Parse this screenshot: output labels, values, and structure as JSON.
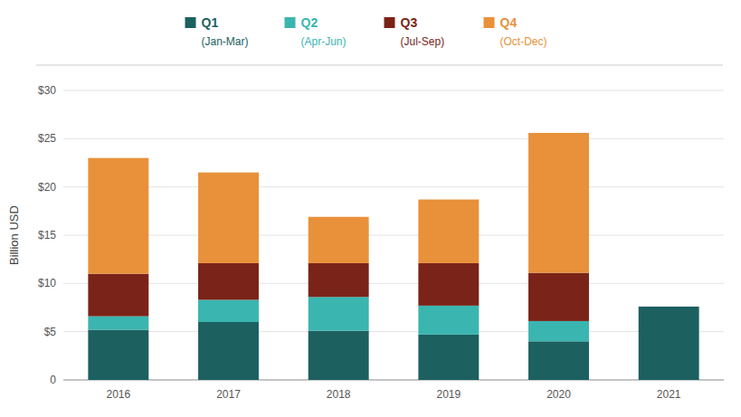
{
  "chart_data": {
    "type": "bar",
    "stacked": true,
    "grid": true,
    "legend": "top",
    "categories": [
      "2016",
      "2017",
      "2018",
      "2019",
      "2020",
      "2021"
    ],
    "series": [
      {
        "name": "Q1",
        "color": "#1c6060",
        "values": [
          5.2,
          6.0,
          5.1,
          4.7,
          4.0,
          7.6
        ]
      },
      {
        "name": "Q2",
        "color": "#3ab5b0",
        "values": [
          1.4,
          2.3,
          3.5,
          3.0,
          2.1,
          0.0
        ]
      },
      {
        "name": "Q3",
        "color": "#7a2318",
        "values": [
          4.4,
          3.8,
          3.5,
          4.4,
          5.0,
          0.0
        ]
      },
      {
        "name": "Q4",
        "color": "#e8913a",
        "values": [
          12.0,
          9.4,
          4.8,
          6.6,
          14.5,
          0.0
        ]
      }
    ],
    "annotations": [
      "(Jan-Mar)",
      "(Apr-Jun)",
      "(Jul-Sep)",
      "(Oct-Dec)"
    ],
    "ylabel": "Billion USD",
    "ylim": [
      0,
      30
    ],
    "yticks": [
      0,
      {
        "value": 5,
        "label": "$5"
      },
      {
        "value": 10,
        "label": "$10"
      },
      {
        "value": 15,
        "label": "$15"
      },
      {
        "value": 20,
        "label": "$20"
      },
      {
        "value": 25,
        "label": "$25"
      },
      {
        "value": 30,
        "label": "$30"
      }
    ]
  }
}
